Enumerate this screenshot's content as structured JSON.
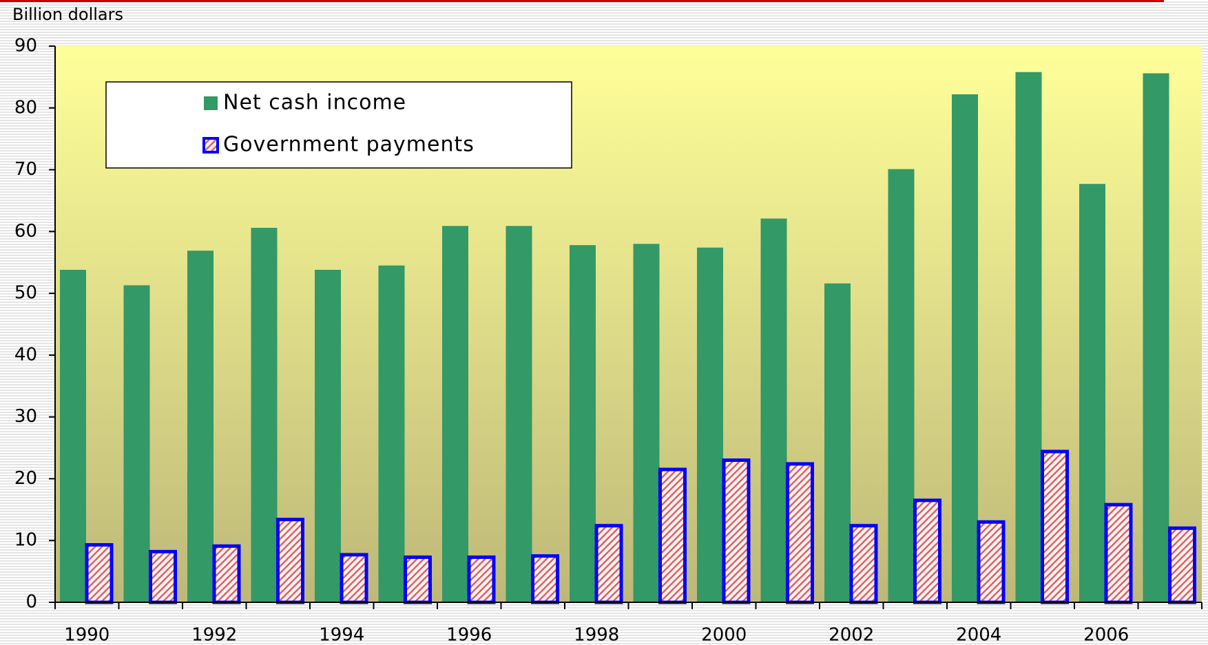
{
  "chart_data": {
    "type": "bar",
    "y_label": "Billion dollars",
    "categories": [
      "1990",
      null,
      "1992",
      null,
      "1994",
      null,
      "1996",
      null,
      "1998",
      null,
      "2000",
      null,
      "2002",
      null,
      "2004",
      null,
      "2006",
      null
    ],
    "series": [
      {
        "name": "Net cash income",
        "color": "#339966",
        "values": [
          53.8,
          51.3,
          56.9,
          60.6,
          53.8,
          54.5,
          60.9,
          60.9,
          57.8,
          58.0,
          57.4,
          62.1,
          51.6,
          70.1,
          82.2,
          85.8,
          67.7,
          85.6
        ]
      },
      {
        "name": "Government payments",
        "color": "#e06060",
        "edgecolor": "#0000ff",
        "values": [
          9.3,
          8.2,
          9.1,
          13.4,
          7.7,
          7.3,
          7.3,
          7.5,
          12.4,
          21.5,
          23.0,
          22.4,
          12.4,
          16.5,
          13.0,
          24.4,
          15.8,
          12.0
        ]
      }
    ],
    "ylim": [
      0,
      90
    ],
    "yticks": [
      0,
      10,
      20,
      30,
      40,
      50,
      60,
      70,
      80,
      90
    ],
    "legend": "upper left"
  }
}
